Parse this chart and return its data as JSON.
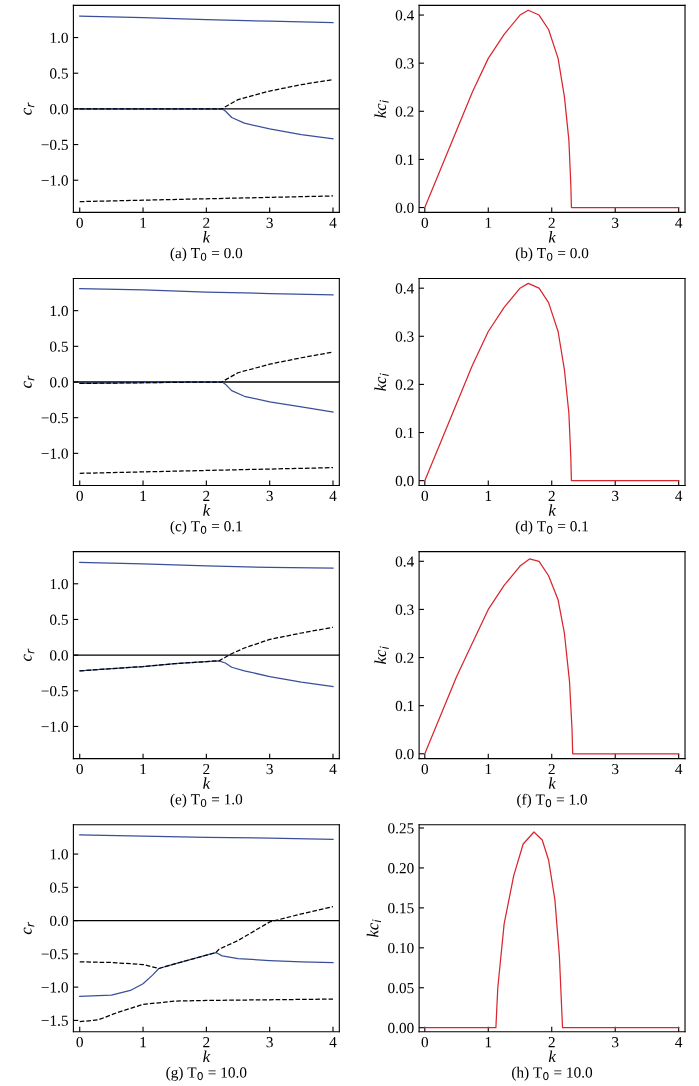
{
  "chart_data": [
    {
      "type": "line",
      "title": "(a) T$_{0}$ = 0.0",
      "xlabel": "k",
      "ylabel": "c$_{r}$",
      "xlim": [
        -0.1,
        4.1
      ],
      "ylim": [
        -1.45,
        1.45
      ],
      "xticks": [
        0,
        1,
        2,
        3,
        4
      ],
      "yticks": [
        {
          "value": -1.0,
          "label": "−1.0"
        },
        {
          "value": -0.5,
          "label": "−0.5"
        },
        {
          "value": 0.0,
          "label": "0.0"
        },
        {
          "value": 0.5,
          "label": "0.5"
        },
        {
          "value": 1.0,
          "label": "1.0"
        }
      ],
      "grid": false,
      "legend": false,
      "ref_lines": [
        {
          "axis": "y",
          "value": 0,
          "color": "#000000",
          "line_style": "solid"
        }
      ],
      "series": [
        {
          "color": "#3a4f9a",
          "line_style": "solid",
          "x": [
            0,
            1,
            2,
            3,
            4
          ],
          "values": [
            1.3,
            1.28,
            1.25,
            1.23,
            1.21
          ]
        },
        {
          "color": "#3a4f9a",
          "line_style": "solid",
          "x": [
            0,
            1,
            2,
            2.25,
            2.3,
            2.4,
            2.6,
            3,
            3.5,
            4
          ],
          "values": [
            0.0,
            0.0,
            0.0,
            0.0,
            -0.03,
            -0.12,
            -0.2,
            -0.28,
            -0.36,
            -0.42
          ]
        },
        {
          "color": "#000000",
          "line_style": "dashed",
          "x": [
            0,
            1,
            2,
            2.25,
            2.3,
            2.5,
            3,
            3.5,
            4
          ],
          "values": [
            0.0,
            0.0,
            0.0,
            0.0,
            0.03,
            0.13,
            0.25,
            0.34,
            0.41
          ]
        },
        {
          "color": "#000000",
          "line_style": "dashed",
          "x": [
            0,
            1,
            2,
            3,
            4
          ],
          "values": [
            -1.3,
            -1.28,
            -1.26,
            -1.24,
            -1.22
          ]
        }
      ]
    },
    {
      "type": "line",
      "title": "(b) T$_{0}$ = 0.0",
      "xlabel": "k",
      "ylabel": "kc$_{i}$",
      "xlim": [
        -0.09,
        4.1
      ],
      "ylim": [
        -0.01,
        0.42
      ],
      "xticks": [
        0,
        1,
        2,
        3,
        4
      ],
      "yticks": [
        {
          "value": 0.0,
          "label": "0.0"
        },
        0.1,
        0.2,
        0.3,
        0.4
      ],
      "grid": false,
      "legend": false,
      "series": [
        {
          "color": "#d9262e",
          "line_style": "solid",
          "x": [
            0,
            0.25,
            0.5,
            0.75,
            1,
            1.25,
            1.5,
            1.63,
            1.8,
            1.95,
            2.1,
            2.2,
            2.27,
            2.3,
            2.31,
            3,
            4
          ],
          "values": [
            0,
            0.08,
            0.16,
            0.24,
            0.31,
            0.36,
            0.4,
            0.41,
            0.4,
            0.37,
            0.31,
            0.23,
            0.14,
            0.05,
            0,
            0,
            0
          ]
        }
      ]
    },
    {
      "type": "line",
      "title": "(c) T$_{0}$ = 0.1",
      "xlabel": "k",
      "ylabel": "c$_{r}$",
      "xlim": [
        -0.1,
        4.1
      ],
      "ylim": [
        -1.45,
        1.45
      ],
      "xticks": [
        0,
        1,
        2,
        3,
        4
      ],
      "yticks": [
        {
          "value": -1.0,
          "label": "−1.0"
        },
        {
          "value": -0.5,
          "label": "−0.5"
        },
        {
          "value": 0.0,
          "label": "0.0"
        },
        {
          "value": 0.5,
          "label": "0.5"
        },
        {
          "value": 1.0,
          "label": "1.0"
        }
      ],
      "grid": false,
      "legend": false,
      "ref_lines": [
        {
          "axis": "y",
          "value": 0,
          "color": "#000000",
          "line_style": "solid"
        }
      ],
      "series": [
        {
          "color": "#3a4f9a",
          "line_style": "solid",
          "x": [
            0,
            1,
            2,
            3,
            4
          ],
          "values": [
            1.31,
            1.29,
            1.26,
            1.24,
            1.22
          ]
        },
        {
          "color": "#3a4f9a",
          "line_style": "solid",
          "x": [
            0,
            1,
            2,
            2.25,
            2.3,
            2.4,
            2.6,
            3,
            3.5,
            4
          ],
          "values": [
            -0.02,
            -0.01,
            0.0,
            0.0,
            -0.03,
            -0.12,
            -0.2,
            -0.28,
            -0.35,
            -0.42
          ]
        },
        {
          "color": "#000000",
          "line_style": "dashed",
          "x": [
            0,
            1,
            2,
            2.25,
            2.3,
            2.5,
            3,
            3.5,
            4
          ],
          "values": [
            -0.02,
            -0.01,
            0.0,
            0.0,
            0.03,
            0.13,
            0.25,
            0.34,
            0.42
          ]
        },
        {
          "color": "#000000",
          "line_style": "dashed",
          "x": [
            0,
            1,
            2,
            3,
            4
          ],
          "values": [
            -1.28,
            -1.26,
            -1.24,
            -1.22,
            -1.2
          ]
        }
      ]
    },
    {
      "type": "line",
      "title": "(d) T$_{0}$ = 0.1",
      "xlabel": "k",
      "ylabel": "kc$_{i}$",
      "xlim": [
        -0.09,
        4.1
      ],
      "ylim": [
        -0.01,
        0.42
      ],
      "xticks": [
        0,
        1,
        2,
        3,
        4
      ],
      "yticks": [
        {
          "value": 0.0,
          "label": "0.0"
        },
        0.1,
        0.2,
        0.3,
        0.4
      ],
      "grid": false,
      "legend": false,
      "series": [
        {
          "color": "#d9262e",
          "line_style": "solid",
          "x": [
            0,
            0.25,
            0.5,
            0.75,
            1,
            1.25,
            1.5,
            1.63,
            1.8,
            1.95,
            2.1,
            2.2,
            2.27,
            2.3,
            2.31,
            3,
            4
          ],
          "values": [
            0,
            0.08,
            0.16,
            0.24,
            0.31,
            0.36,
            0.4,
            0.41,
            0.4,
            0.37,
            0.31,
            0.23,
            0.14,
            0.05,
            0,
            0,
            0
          ]
        }
      ]
    },
    {
      "type": "line",
      "title": "(e) T$_{0}$ = 1.0",
      "xlabel": "k",
      "ylabel": "c$_{r}$",
      "xlim": [
        -0.1,
        4.1
      ],
      "ylim": [
        -1.45,
        1.45
      ],
      "xticks": [
        0,
        1,
        2,
        3,
        4
      ],
      "yticks": [
        {
          "value": -1.0,
          "label": "−1.0"
        },
        {
          "value": -0.5,
          "label": "−0.5"
        },
        {
          "value": 0.0,
          "label": "0.0"
        },
        {
          "value": 0.5,
          "label": "0.5"
        },
        {
          "value": 1.0,
          "label": "1.0"
        }
      ],
      "grid": false,
      "legend": false,
      "ref_lines": [
        {
          "axis": "y",
          "value": 0,
          "color": "#000000",
          "line_style": "solid"
        }
      ],
      "series": [
        {
          "color": "#3a4f9a",
          "line_style": "solid",
          "x": [
            0,
            1,
            2,
            3,
            4
          ],
          "values": [
            1.3,
            1.28,
            1.25,
            1.23,
            1.22
          ]
        },
        {
          "color": "#3a4f9a",
          "line_style": "solid",
          "x": [
            0,
            0.5,
            1,
            1.5,
            2,
            2.2,
            2.3,
            2.4,
            2.6,
            3,
            3.5,
            4
          ],
          "values": [
            -0.22,
            -0.19,
            -0.16,
            -0.12,
            -0.09,
            -0.08,
            -0.11,
            -0.17,
            -0.22,
            -0.3,
            -0.38,
            -0.44
          ]
        },
        {
          "color": "#000000",
          "line_style": "dashed",
          "x": [
            0,
            0.5,
            1,
            1.5,
            2,
            2.2,
            2.3,
            2.4,
            2.6,
            3,
            3.5,
            4
          ],
          "values": [
            -0.22,
            -0.19,
            -0.16,
            -0.12,
            -0.09,
            -0.08,
            -0.03,
            0.02,
            0.1,
            0.22,
            0.31,
            0.39
          ]
        }
      ]
    },
    {
      "type": "line",
      "title": "(f) T$_{0}$ = 1.0",
      "xlabel": "k",
      "ylabel": "kc$_{i}$",
      "xlim": [
        -0.09,
        4.1
      ],
      "ylim": [
        -0.01,
        0.42
      ],
      "xticks": [
        0,
        1,
        2,
        3,
        4
      ],
      "yticks": [
        {
          "value": 0.0,
          "label": "0.0"
        },
        0.1,
        0.2,
        0.3,
        0.4
      ],
      "grid": false,
      "legend": false,
      "series": [
        {
          "color": "#d9262e",
          "line_style": "solid",
          "x": [
            0,
            0.25,
            0.5,
            0.75,
            1,
            1.25,
            1.5,
            1.65,
            1.8,
            1.95,
            2.1,
            2.2,
            2.28,
            2.32,
            2.33,
            3,
            4
          ],
          "values": [
            0,
            0.08,
            0.16,
            0.23,
            0.3,
            0.35,
            0.39,
            0.405,
            0.4,
            0.37,
            0.32,
            0.25,
            0.15,
            0.05,
            0,
            0,
            0
          ]
        }
      ]
    },
    {
      "type": "line",
      "title": "(g) T$_{0}$ = 10.0",
      "xlabel": "k",
      "ylabel": "c$_{r}$",
      "xlim": [
        -0.1,
        4.1
      ],
      "ylim": [
        -1.67,
        1.44
      ],
      "xticks": [
        0,
        1,
        2,
        3,
        4
      ],
      "yticks": [
        {
          "value": -1.5,
          "label": "−1.5"
        },
        {
          "value": -1.0,
          "label": "−1.0"
        },
        {
          "value": -0.5,
          "label": "−0.5"
        },
        {
          "value": 0.0,
          "label": "0.0"
        },
        {
          "value": 0.5,
          "label": "0.5"
        },
        {
          "value": 1.0,
          "label": "1.0"
        }
      ],
      "grid": false,
      "legend": false,
      "ref_lines": [
        {
          "axis": "y",
          "value": 0,
          "color": "#000000",
          "line_style": "solid"
        }
      ],
      "series": [
        {
          "color": "#3a4f9a",
          "line_style": "solid",
          "x": [
            0,
            1,
            2,
            3,
            4
          ],
          "values": [
            1.29,
            1.27,
            1.25,
            1.24,
            1.22
          ]
        },
        {
          "color": "#3a4f9a",
          "line_style": "solid",
          "x": [
            0,
            0.5,
            0.8,
            1.0,
            1.15,
            1.25,
            1.5,
            2.0,
            2.15,
            2.25,
            2.5,
            3,
            3.5,
            4
          ],
          "values": [
            -1.14,
            -1.12,
            -1.05,
            -0.95,
            -0.82,
            -0.72,
            -0.65,
            -0.52,
            -0.48,
            -0.53,
            -0.57,
            -0.6,
            -0.62,
            -0.63
          ]
        },
        {
          "color": "#000000",
          "line_style": "dashed",
          "x": [
            0,
            0.5,
            1.0,
            1.25,
            1.5,
            2.0,
            2.15,
            2.2,
            2.5,
            3,
            3.5,
            4
          ],
          "values": [
            -0.62,
            -0.63,
            -0.66,
            -0.72,
            -0.65,
            -0.52,
            -0.48,
            -0.43,
            -0.3,
            -0.02,
            0.1,
            0.21
          ]
        },
        {
          "color": "#000000",
          "line_style": "dashed",
          "x": [
            0,
            0.3,
            0.6,
            1.0,
            1.5,
            2,
            3,
            4
          ],
          "values": [
            -1.52,
            -1.49,
            -1.38,
            -1.26,
            -1.21,
            -1.2,
            -1.19,
            -1.18
          ]
        }
      ]
    },
    {
      "type": "line",
      "title": "(h) T$_{0}$ = 10.0",
      "xlabel": "k",
      "ylabel": "kc$_{i}$",
      "xlim": [
        -0.09,
        4.1
      ],
      "ylim": [
        -0.005,
        0.254
      ],
      "xticks": [
        0,
        1,
        2,
        3,
        4
      ],
      "yticks": [
        {
          "value": 0.0,
          "label": "0.00"
        },
        0.05,
        {
          "value": 0.1,
          "label": "0.10"
        },
        0.15,
        {
          "value": 0.2,
          "label": "0.20"
        },
        0.25
      ],
      "grid": false,
      "legend": false,
      "series": [
        {
          "color": "#d9262e",
          "line_style": "solid",
          "x": [
            0,
            1,
            1.12,
            1.15,
            1.25,
            1.4,
            1.55,
            1.72,
            1.85,
            1.95,
            2.05,
            2.12,
            2.17,
            3,
            4
          ],
          "values": [
            0,
            0,
            0,
            0.05,
            0.13,
            0.19,
            0.23,
            0.245,
            0.235,
            0.21,
            0.16,
            0.09,
            0,
            0,
            0
          ]
        }
      ]
    }
  ]
}
